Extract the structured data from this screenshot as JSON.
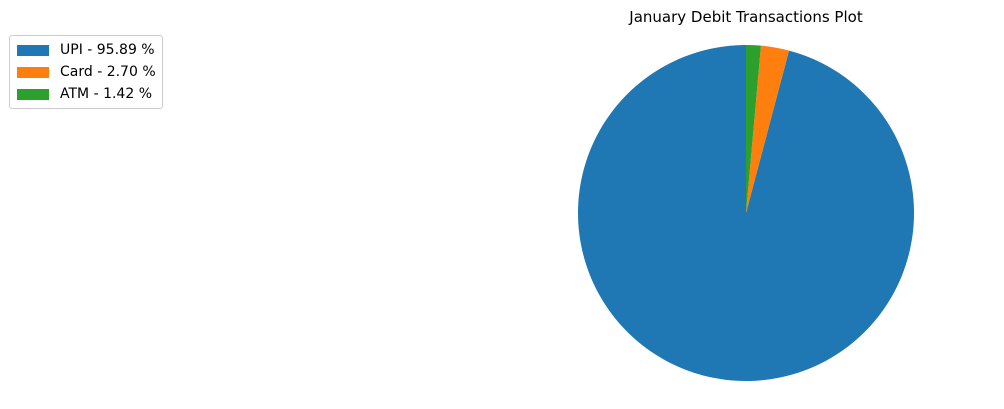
{
  "chart_data": {
    "type": "pie",
    "title": "January Debit Transactions Plot",
    "slices": [
      {
        "label": "UPI - 95.89 %",
        "value": 95.89,
        "color": "#1f77b4"
      },
      {
        "label": "Card - 2.70 %",
        "value": 2.7,
        "color": "#ff7f0e"
      },
      {
        "label": "ATM - 1.42 %",
        "value": 1.42,
        "color": "#2ca02c"
      }
    ],
    "start_angle_deg": 90,
    "direction": "counterclockwise",
    "legend_placement": "upper-left"
  }
}
